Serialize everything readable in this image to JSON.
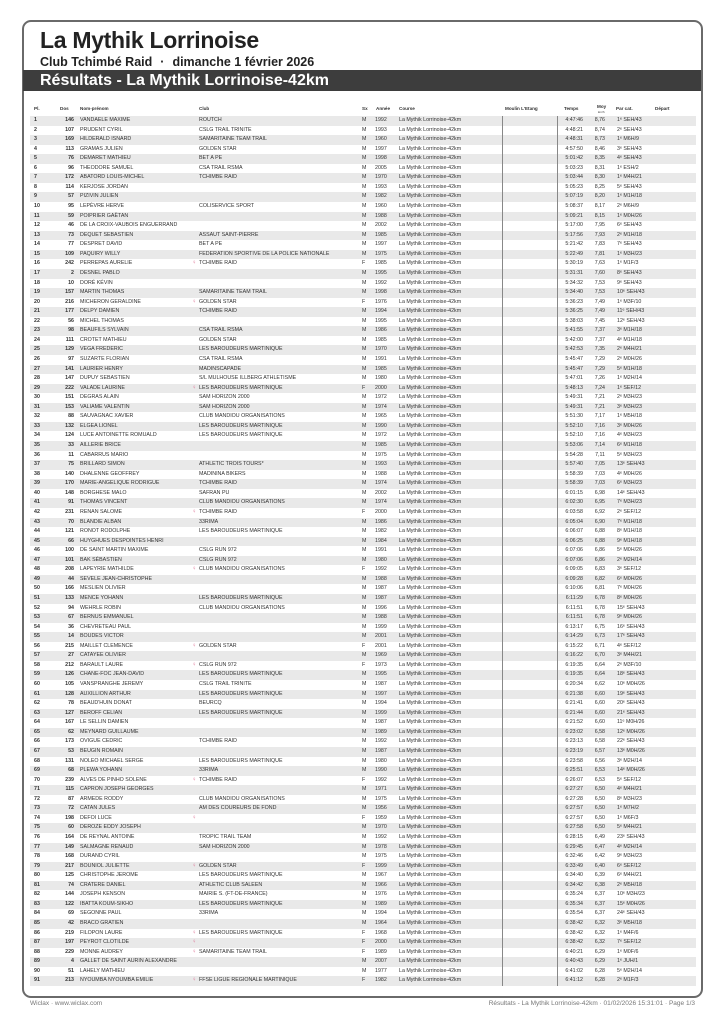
{
  "header": {
    "title": "La Mythik Lorrinoise",
    "club": "Club Tchimbé Raid",
    "separator": "·",
    "date": "dimanche 1 février 2026",
    "section_title": "Résultats - La Mythik Lorrinoise-42km"
  },
  "columns": {
    "pl": "Pl.",
    "dos": "Dos",
    "nom": "Nom-prénom",
    "club": "Club",
    "sx": "Sx",
    "annee": "Année",
    "course": "Course",
    "moulin": "Moulin L'Etang",
    "temps": "Temps",
    "moy": "Moy",
    "moy_unit": "km/h",
    "cat": "Par cat.",
    "depart": "Départ"
  },
  "course": "La Mythik Lorrinoise-42km",
  "female_icon_color": "#e07a9a",
  "rows": [
    [
      "1",
      "146",
      "VANDAELE MAXIME",
      "ROUTCH",
      "M",
      "1992",
      "4:47:46",
      "8,76",
      "1ᵉ SEH/43"
    ],
    [
      "2",
      "107",
      "PRUDENT CYRIL",
      "CSLG TRAIL TRINITE",
      "M",
      "1993",
      "4:48:21",
      "8,74",
      "2ᵉ SEH/43"
    ],
    [
      "3",
      "169",
      "HILDERALD ISNARD",
      "SAMARITAINE TEAM TRAIL",
      "M",
      "1960",
      "4:48:31",
      "8,73",
      "1ᵉ M6H/9"
    ],
    [
      "4",
      "113",
      "GRAMAS JULIEN",
      "GOLDEN STAR",
      "M",
      "1997",
      "4:57:50",
      "8,46",
      "3ᵉ SEH/43"
    ],
    [
      "5",
      "76",
      "DEMARET MATHIEU",
      "BET A PE",
      "M",
      "1998",
      "5:01:42",
      "8,35",
      "4ᵉ SEH/43"
    ],
    [
      "6",
      "96",
      "THEODORE SAMUEL",
      "CSA TRAIL RSMA",
      "M",
      "2005",
      "5:03:23",
      "8,31",
      "1ᵉ ESH/2"
    ],
    [
      "7",
      "172",
      "ABATORD LOUIS-MICHEL",
      "TCHIMBE RAID",
      "M",
      "1970",
      "5:03:44",
      "8,30",
      "1ᵉ M4H/21"
    ],
    [
      "8",
      "114",
      "KERJOSE JORDAN",
      "",
      "M",
      "1993",
      "5:05:23",
      "8,25",
      "5ᵉ SEH/43"
    ],
    [
      "9",
      "57",
      "PIZIVIN JULIEN",
      "",
      "M",
      "1982",
      "5:07:19",
      "8,20",
      "1ᵉ M1H/18"
    ],
    [
      "10",
      "95",
      "LEPÈVRE HERVE",
      "COLISERVICE SPORT",
      "M",
      "1960",
      "5:08:37",
      "8,17",
      "2ᵉ M6H/9"
    ],
    [
      "11",
      "59",
      "POIPRIER GAËTAN",
      "",
      "M",
      "1988",
      "5:09:21",
      "8,15",
      "1ᵉ M0H/26"
    ],
    [
      "12",
      "46",
      "DE LA CROIX-VAUBOIS ENGUERRAND",
      "",
      "M",
      "2002",
      "5:17:00",
      "7,95",
      "6ᵉ SEH/43"
    ],
    [
      "13",
      "73",
      "DEQUET SEBASTIEN",
      "ASSAUT SAINT-PIERRE",
      "M",
      "1985",
      "5:17:56",
      "7,93",
      "2ᵉ M1H/18"
    ],
    [
      "14",
      "77",
      "DESPRET DAVID",
      "BET A PE",
      "M",
      "1997",
      "5:21:42",
      "7,83",
      "7ᵉ SEH/43"
    ],
    [
      "15",
      "109",
      "PAQUIRY WILLY",
      "FEDERATION SPORTIVE DE LA POLICE NATIONALE",
      "M",
      "1975",
      "5:22:49",
      "7,81",
      "1ᵉ M3H/23"
    ],
    [
      "16",
      "242",
      "PERREPAS AURELIE",
      "TCHIMBE RAID",
      "F",
      "1985",
      "5:30:19",
      "7,63",
      "1ᵉ M1F/3"
    ],
    [
      "17",
      "2",
      "DESNEL PABLO",
      "",
      "M",
      "1995",
      "5:31:31",
      "7,60",
      "8ᵉ SEH/43"
    ],
    [
      "18",
      "10",
      "DORÉ KÉVIN",
      "",
      "M",
      "1992",
      "5:34:32",
      "7,53",
      "9ᵉ SEH/43"
    ],
    [
      "19",
      "157",
      "MARTIN THOMAS",
      "SAMARITAINE TEAM TRAIL",
      "M",
      "1998",
      "5:34:40",
      "7,53",
      "10ᵉ SEH/43"
    ],
    [
      "20",
      "216",
      "MICHERON GERALDINE",
      "GOLDEN STAR",
      "F",
      "1976",
      "5:36:23",
      "7,49",
      "1ᵉ M3F/10"
    ],
    [
      "21",
      "177",
      "DELPY DAMIEN",
      "TCHIMBE RAID",
      "M",
      "1994",
      "5:36:25",
      "7,49",
      "11ᵉ SEH/43"
    ],
    [
      "22",
      "56",
      "MICHEL THOMAS",
      "",
      "M",
      "1995",
      "5:38:03",
      "7,45",
      "12ᵉ SEH/43"
    ],
    [
      "23",
      "98",
      "BEAUFILS SYLVAIN",
      "CSA TRAIL RSMA",
      "M",
      "1986",
      "5:41:55",
      "7,37",
      "3ᵉ M1H/18"
    ],
    [
      "24",
      "111",
      "CROTET MATHIEU",
      "GOLDEN STAR",
      "M",
      "1985",
      "5:42:00",
      "7,37",
      "4ᵉ M1H/18"
    ],
    [
      "25",
      "129",
      "VEGA FREDERIC",
      "LES BAROUDEURS MARTINIQUE",
      "M",
      "1970",
      "5:42:53",
      "7,35",
      "2ᵉ M4H/21"
    ],
    [
      "26",
      "97",
      "SUZARTE FLORIAN",
      "CSA TRAIL RSMA",
      "M",
      "1991",
      "5:45:47",
      "7,29",
      "2ᵉ M0H/26"
    ],
    [
      "27",
      "141",
      "LAURIER HENRY",
      "MADINSCAPADE",
      "M",
      "1985",
      "5:45:47",
      "7,29",
      "5ᵉ M1H/18"
    ],
    [
      "28",
      "147",
      "DUPUY SEBASTIEN",
      "S/L MULHOUSE ILLBERG ATHLETISME",
      "M",
      "1980",
      "5:47:01",
      "7,26",
      "1ᵉ M2H/14"
    ],
    [
      "29",
      "222",
      "VALADE LAURINE",
      "LES BAROUDEURS MARTINIQUE",
      "F",
      "2000",
      "5:48:13",
      "7,24",
      "1ᵉ SEF/12"
    ],
    [
      "30",
      "151",
      "DEGRAS ALAIN",
      "SAM HORIZON 2000",
      "M",
      "1972",
      "5:49:31",
      "7,21",
      "2ᵉ M3H/23"
    ],
    [
      "31",
      "153",
      "VALIAME VALENTIN",
      "SAM HORIZON 2000",
      "M",
      "1974",
      "5:49:31",
      "7,21",
      "3ᵉ M3H/23"
    ],
    [
      "32",
      "88",
      "SAUVAGNAC XAVIER",
      "CLUB MANDIOU ORGANISATIONS",
      "M",
      "1965",
      "5:51:30",
      "7,17",
      "1ᵉ M5H/18"
    ],
    [
      "33",
      "132",
      "ELGEA LIONEL",
      "LES BAROUDEURS MARTINIQUE",
      "M",
      "1990",
      "5:52:10",
      "7,16",
      "3ᵉ M0H/26"
    ],
    [
      "34",
      "124",
      "LUCE ANTOINETTE ROMUALD",
      "LES BAROUDEURS MARTINIQUE",
      "M",
      "1972",
      "5:52:10",
      "7,16",
      "4ᵉ M3H/23"
    ],
    [
      "35",
      "33",
      "AILLERIE BRICE",
      "",
      "M",
      "1985",
      "5:53:06",
      "7,14",
      "6ᵉ M1H/18"
    ],
    [
      "36",
      "11",
      "CABARRUS MARIO",
      "",
      "M",
      "1975",
      "5:54:28",
      "7,11",
      "5ᵉ M3H/23"
    ],
    [
      "37",
      "75",
      "BRILLARD SIMON",
      "ATHLETIC TROIS TOURS*",
      "M",
      "1993",
      "5:57:40",
      "7,05",
      "13ᵉ SEH/43"
    ],
    [
      "38",
      "140",
      "DHALENNE GEOFFREY",
      "MADININA BIKERS",
      "M",
      "1988",
      "5:58:39",
      "7,03",
      "4ᵉ M0H/26"
    ],
    [
      "39",
      "170",
      "MARIE-ANGELIQUE RODRIGUE",
      "TCHIMBE RAID",
      "M",
      "1974",
      "5:58:39",
      "7,03",
      "6ᵉ M3H/23"
    ],
    [
      "40",
      "148",
      "BORGHESE MALO",
      "SAFRAN PU",
      "M",
      "2002",
      "6:01:15",
      "6,98",
      "14ᵉ SEH/43"
    ],
    [
      "41",
      "91",
      "THOMAS VINCENT",
      "CLUB MANDIOU ORGANISATIONS",
      "M",
      "1974",
      "6:02:30",
      "6,95",
      "7ᵉ M3H/23"
    ],
    [
      "42",
      "231",
      "RENAN SALOME",
      "TCHIMBE RAID",
      "F",
      "2000",
      "6:03:58",
      "6,92",
      "2ᵉ SEF/12"
    ],
    [
      "43",
      "70",
      "BLANDIE ALBAN",
      "33RIMA",
      "M",
      "1986",
      "6:05:04",
      "6,90",
      "7ᵉ M1H/18"
    ],
    [
      "44",
      "121",
      "RONOT RODOLPHE",
      "LES BAROUDEURS MARTINIQUE",
      "M",
      "1982",
      "6:06:07",
      "6,88",
      "8ᵉ M1H/18"
    ],
    [
      "45",
      "66",
      "HUYGHUES DESPOINTES HENRI",
      "",
      "M",
      "1984",
      "6:06:25",
      "6,88",
      "9ᵉ M1H/18"
    ],
    [
      "46",
      "100",
      "DE SAINT MARTIN MAXIME",
      "CSLG RUN 972",
      "M",
      "1991",
      "6:07:06",
      "6,86",
      "5ᵉ M0H/26"
    ],
    [
      "47",
      "101",
      "BAK SÉBASTIEN",
      "CSLG RUN 972",
      "M",
      "1980",
      "6:07:06",
      "6,86",
      "2ᵉ M2H/14"
    ],
    [
      "48",
      "208",
      "LAPEYRIE MATHILDE",
      "CLUB MANDIOU ORGANISATIONS",
      "F",
      "1992",
      "6:09:05",
      "6,83",
      "3ᵉ SEF/12"
    ],
    [
      "49",
      "44",
      "SEVELE JEAN-CHRISTOPHE",
      "",
      "M",
      "1988",
      "6:09:28",
      "6,82",
      "6ᵉ M0H/26"
    ],
    [
      "50",
      "166",
      "MESLIEN OLIVIER",
      "",
      "M",
      "1987",
      "6:10:06",
      "6,81",
      "7ᵉ M0H/26"
    ],
    [
      "51",
      "133",
      "MENCE YOHANN",
      "LES BAROUDEURS MARTINIQUE",
      "M",
      "1987",
      "6:11:29",
      "6,78",
      "8ᵉ M0H/26"
    ],
    [
      "52",
      "94",
      "WEHRLE ROBIN",
      "CLUB MANDIOU ORGANISATIONS",
      "M",
      "1996",
      "6:11:51",
      "6,78",
      "15ᵉ SEH/43"
    ],
    [
      "53",
      "67",
      "BERNUS EMMANUEL",
      "",
      "M",
      "1988",
      "6:11:51",
      "6,78",
      "9ᵉ M0H/26"
    ],
    [
      "54",
      "36",
      "CHEVRETEAU PAUL",
      "",
      "M",
      "1999",
      "6:13:17",
      "6,75",
      "16ᵉ SEH/43"
    ],
    [
      "55",
      "14",
      "BOUDES VICTOR",
      "",
      "M",
      "2001",
      "6:14:29",
      "6,73",
      "17ᵉ SEH/43"
    ],
    [
      "56",
      "215",
      "MAILLET CLEMENCE",
      "GOLDEN STAR",
      "F",
      "2001",
      "6:15:22",
      "6,71",
      "4ᵉ SEF/12"
    ],
    [
      "57",
      "27",
      "CATAYEE OLIVIER",
      "",
      "M",
      "1969",
      "6:16:22",
      "6,70",
      "3ᵉ M4H/21"
    ],
    [
      "58",
      "212",
      "BARAULT LAURE",
      "CSLG RUN 972",
      "F",
      "1973",
      "6:19:35",
      "6,64",
      "2ᵉ M3F/10"
    ],
    [
      "59",
      "126",
      "CHANE-FOC JEAN-DAVID",
      "LES BAROUDEURS MARTINIQUE",
      "M",
      "1995",
      "6:19:35",
      "6,64",
      "18ᵉ SEH/43"
    ],
    [
      "60",
      "105",
      "VANSPRANGHE JEREMY",
      "CSLG TRAIL TRINITE",
      "M",
      "1987",
      "6:20:34",
      "6,62",
      "10ᵉ M0H/26"
    ],
    [
      "61",
      "128",
      "AUXILLION ARTHUR",
      "LES BAROUDEURS MARTINIQUE",
      "M",
      "1997",
      "6:21:38",
      "6,60",
      "19ᵉ SEH/43"
    ],
    [
      "62",
      "78",
      "BEAUD'HUIN DONAT",
      "BEURCQ",
      "M",
      "1994",
      "6:21:41",
      "6,60",
      "20ᵉ SEH/43"
    ],
    [
      "63",
      "127",
      "BEROFF CELIAN",
      "LES BAROUDEURS MARTINIQUE",
      "M",
      "1999",
      "6:21:44",
      "6,60",
      "21ᵉ SEH/43"
    ],
    [
      "64",
      "167",
      "LE SELLIN DAMIEN",
      "",
      "M",
      "1987",
      "6:21:52",
      "6,60",
      "11ᵉ M0H/26"
    ],
    [
      "65",
      "62",
      "MEYNARD GUILLAUME",
      "",
      "M",
      "1989",
      "6:23:02",
      "6,58",
      "12ᵉ M0H/26"
    ],
    [
      "66",
      "173",
      "OVIGUE CEDRIC",
      "TCHIMBE RAID",
      "M",
      "1992",
      "6:23:13",
      "6,58",
      "22ᵉ SEH/43"
    ],
    [
      "67",
      "53",
      "BEUGIN ROMAIN",
      "",
      "M",
      "1987",
      "6:23:19",
      "6,57",
      "13ᵉ M0H/26"
    ],
    [
      "68",
      "131",
      "NOLEO MICHAEL SERGE",
      "LES BAROUDEURS MARTINIQUE",
      "M",
      "1980",
      "6:23:58",
      "6,56",
      "3ᵉ M2H/14"
    ],
    [
      "69",
      "68",
      "PLEWA YOHANN",
      "33RIMA",
      "M",
      "1990",
      "6:25:51",
      "6,53",
      "14ᵉ M0H/26"
    ],
    [
      "70",
      "239",
      "ALVES DE PINHO SOLENE",
      "TCHIMBE RAID",
      "F",
      "1992",
      "6:26:07",
      "6,53",
      "5ᵉ SEF/12"
    ],
    [
      "71",
      "115",
      "CAPRON JOSEPH GEORGES",
      "",
      "M",
      "1971",
      "6:27:27",
      "6,50",
      "4ᵉ M4H/21"
    ],
    [
      "72",
      "87",
      "ARMEDE RODDY",
      "CLUB MANDIOU ORGANISATIONS",
      "M",
      "1975",
      "6:27:28",
      "6,50",
      "8ᵉ M3H/23"
    ],
    [
      "73",
      "72",
      "CATAN JULES",
      "AM DES COUREURS DE FOND",
      "M",
      "1956",
      "6:27:57",
      "6,50",
      "1ᵉ M7H/2"
    ],
    [
      "74",
      "198",
      "DEFOI LUCE",
      "",
      "F",
      "1959",
      "6:27:57",
      "6,50",
      "1ᵉ M6F/3"
    ],
    [
      "75",
      "60",
      "DEROZE EDDY JOSEPH",
      "",
      "M",
      "1970",
      "6:27:58",
      "6,50",
      "5ᵉ M4H/21"
    ],
    [
      "76",
      "164",
      "DE REYNAL ANTOINE",
      "TROPIC TRAIL TEAM",
      "M",
      "1992",
      "6:28:15",
      "6,49",
      "23ᵉ SEH/43"
    ],
    [
      "77",
      "149",
      "SALMAGNE RENAUD",
      "SAM HORIZON 2000",
      "M",
      "1978",
      "6:29:45",
      "6,47",
      "4ᵉ M2H/14"
    ],
    [
      "78",
      "168",
      "DURAND CYRIL",
      "",
      "M",
      "1975",
      "6:32:46",
      "6,42",
      "9ᵉ M3H/23"
    ],
    [
      "79",
      "217",
      "BOUNIOL JULIETTE",
      "GOLDEN STAR",
      "F",
      "1999",
      "6:33:49",
      "6,40",
      "6ᵉ SEF/12"
    ],
    [
      "80",
      "125",
      "CHRISTOPHE JEROME",
      "LES BAROUDEURS MARTINIQUE",
      "M",
      "1967",
      "6:34:40",
      "6,39",
      "6ᵉ M4H/21"
    ],
    [
      "81",
      "74",
      "CRATERE DANIEL",
      "ATHLETIC CLUB SALEEN",
      "M",
      "1966",
      "6:34:42",
      "6,38",
      "2ᵉ M5H/18"
    ],
    [
      "82",
      "144",
      "JOSEPH KENSON",
      "MAIRIE S. (FT-DE-FRANCE)",
      "M",
      "1976",
      "6:35:24",
      "6,37",
      "10ᵉ M3H/23"
    ],
    [
      "83",
      "122",
      "IBATTA KOUM-SIKHO",
      "LES BAROUDEURS MARTINIQUE",
      "M",
      "1989",
      "6:35:34",
      "6,37",
      "15ᵉ M0H/26"
    ],
    [
      "84",
      "69",
      "SEGONNE PAUL",
      "33RIMA",
      "M",
      "1994",
      "6:35:54",
      "6,37",
      "24ᵉ SEH/43"
    ],
    [
      "85",
      "42",
      "BRACO GRATIEN",
      "",
      "M",
      "1964",
      "6:38:42",
      "6,32",
      "3ᵉ M5H/18"
    ],
    [
      "86",
      "219",
      "FILOPON LAURE",
      "LES BAROUDEURS MARTINIQUE",
      "F",
      "1968",
      "6:38:42",
      "6,32",
      "1ᵉ M4F/6"
    ],
    [
      "87",
      "197",
      "PEYROT CLOTILDE",
      "",
      "F",
      "2000",
      "6:38:42",
      "6,32",
      "7ᵉ SEF/12"
    ],
    [
      "88",
      "229",
      "MONNE AUDREY",
      "SAMARITAINE TEAM TRAIL",
      "F",
      "1989",
      "6:40:21",
      "6,29",
      "1ᵉ M0F/6"
    ],
    [
      "89",
      "4",
      "GALLET DE SAINT AURIN ALEXANDRE",
      "",
      "M",
      "2007",
      "6:40:43",
      "6,29",
      "1ᵉ JUH/1"
    ],
    [
      "90",
      "51",
      "LAHELY MATHIEU",
      "",
      "M",
      "1977",
      "6:41:02",
      "6,28",
      "5ᵉ M2H/14"
    ],
    [
      "91",
      "213",
      "NYOUMBA NYOUMBA EMILIE",
      "FFSE LIGUE REGIONALE MARTINIQUE",
      "F",
      "1982",
      "6:41:12",
      "6,28",
      "2ᵉ M1F/3"
    ]
  ],
  "footer": {
    "left": "Wiclax · www.wiclax.com",
    "right": "Résultats - La Mythik Lorrinoise-42km · 01/02/2026 15:31:01 · Page 1/3"
  }
}
